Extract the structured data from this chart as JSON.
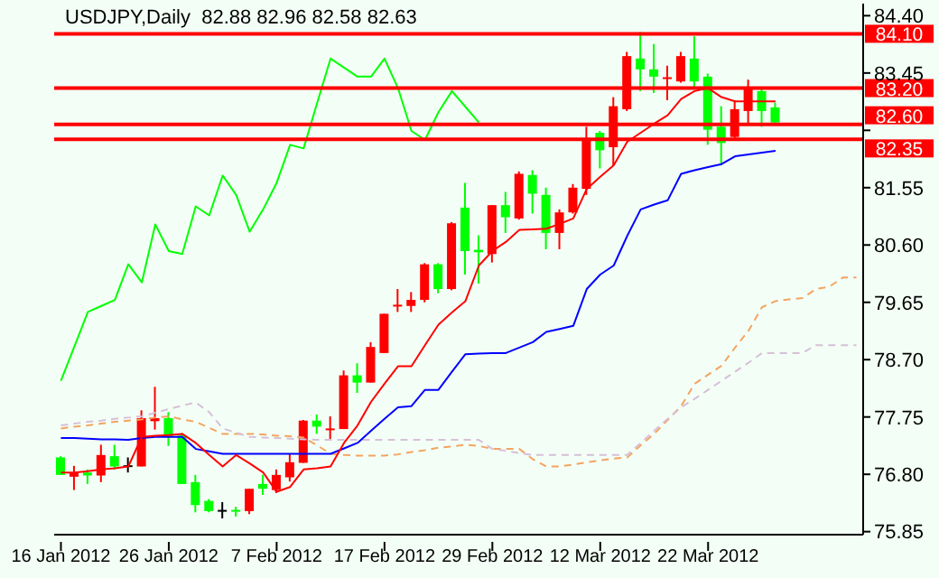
{
  "chart_data": {
    "type": "candlestick",
    "title": "USDJPY,Daily  82.88 82.96 82.58 82.63",
    "categories": [
      "16 Jan 2012",
      null,
      null,
      null,
      null,
      null,
      null,
      null,
      "26 Jan 2012",
      null,
      null,
      null,
      null,
      null,
      null,
      null,
      "7 Feb 2012",
      null,
      null,
      null,
      null,
      null,
      null,
      null,
      "17 Feb 2012",
      null,
      null,
      null,
      null,
      null,
      null,
      null,
      "29 Feb 2012",
      null,
      null,
      null,
      null,
      null,
      null,
      null,
      "12 Mar 2012",
      null,
      null,
      null,
      null,
      null,
      null,
      null,
      "22 Mar 2012",
      null,
      null,
      null,
      null,
      null,
      null,
      null,
      null,
      null,
      null,
      null
    ],
    "ylim": [
      75.8,
      84.6
    ],
    "yticks": [
      {
        "value": 84.4,
        "label": "84.40"
      },
      {
        "value": 83.45,
        "label": "83.45"
      },
      {
        "value": 82.5,
        "label": null
      },
      {
        "value": 81.55,
        "label": "81.55"
      },
      {
        "value": 80.6,
        "label": "80.60"
      },
      {
        "value": 79.65,
        "label": "79.65"
      },
      {
        "value": 78.7,
        "label": "78.70"
      },
      {
        "value": 77.75,
        "label": "77.75"
      },
      {
        "value": 76.8,
        "label": "76.80"
      },
      {
        "value": 75.85,
        "label": "75.85"
      }
    ],
    "marker": "none",
    "ref_lines": [
      {
        "axis": "y",
        "value": 84.1,
        "label": "84.10",
        "color": "#ff0000"
      },
      {
        "axis": "y",
        "value": 83.2,
        "label": "83.20",
        "color": "#ff0000"
      },
      {
        "axis": "y",
        "value": 82.6,
        "label": "82.60",
        "color": "#ff0000"
      },
      {
        "axis": "y",
        "value": 82.35,
        "label": "82.35",
        "color": "#ff0000"
      }
    ],
    "series": [
      {
        "type": "line",
        "color": "#f4a460",
        "line_style": "dashed",
        "values": [
          77.56,
          77.59,
          77.61,
          77.64,
          77.67,
          77.69,
          77.71,
          77.74,
          77.76,
          77.71,
          77.67,
          77.57,
          77.47,
          77.47,
          77.47,
          77.46,
          77.44,
          77.43,
          77.41,
          77.28,
          77.14,
          77.12,
          77.11,
          77.11,
          77.11,
          77.13,
          77.17,
          77.2,
          77.24,
          77.26,
          77.29,
          77.27,
          77.22,
          77.22,
          77.22,
          77.05,
          76.93,
          76.93,
          76.96,
          77.0,
          77.03,
          77.06,
          77.08,
          77.28,
          77.47,
          77.7,
          77.93,
          78.3,
          78.45,
          78.6,
          78.9,
          79.18,
          79.57,
          79.67,
          79.7,
          79.72,
          79.87,
          79.91,
          80.06,
          80.06
        ]
      },
      {
        "type": "line",
        "color": "#d8bfd8",
        "line_style": "dashed",
        "values": [
          77.61,
          77.64,
          77.67,
          77.69,
          77.72,
          77.74,
          77.76,
          77.82,
          77.88,
          77.94,
          77.99,
          77.83,
          77.56,
          77.49,
          77.42,
          77.41,
          77.4,
          77.39,
          77.38,
          77.37,
          77.37,
          77.37,
          77.37,
          77.37,
          77.37,
          77.37,
          77.37,
          77.37,
          77.37,
          77.37,
          77.37,
          77.37,
          77.22,
          77.19,
          77.15,
          77.12,
          77.12,
          77.12,
          77.12,
          77.12,
          77.12,
          77.12,
          77.12,
          77.32,
          77.52,
          77.72,
          77.91,
          78.05,
          78.2,
          78.35,
          78.5,
          78.65,
          78.81,
          78.81,
          78.81,
          78.81,
          78.94,
          78.94,
          78.94,
          78.94
        ]
      },
      {
        "type": "line",
        "color": "#00ff00",
        "values": [
          78.35,
          78.92,
          79.49,
          79.59,
          79.69,
          80.28,
          79.98,
          80.94,
          80.5,
          80.45,
          81.24,
          81.09,
          81.75,
          81.43,
          80.82,
          81.19,
          81.63,
          82.26,
          82.2,
          82.95,
          83.69,
          83.54,
          83.39,
          83.39,
          83.69,
          83.2,
          82.49,
          82.34,
          82.8,
          83.15,
          82.89,
          82.63,
          null,
          null,
          null,
          null,
          null,
          null,
          null,
          null,
          null,
          null,
          null,
          null,
          null,
          null,
          null,
          null,
          null,
          null,
          null,
          null,
          null,
          null,
          null,
          null,
          null,
          null,
          null,
          null
        ]
      },
      {
        "type": "line",
        "color": "#0000ff",
        "values": [
          77.4,
          77.4,
          77.39,
          77.38,
          77.38,
          77.37,
          77.4,
          77.42,
          77.42,
          77.42,
          77.22,
          77.18,
          77.14,
          77.14,
          77.14,
          77.14,
          77.14,
          77.14,
          77.14,
          77.14,
          77.14,
          77.23,
          77.32,
          77.52,
          77.72,
          77.91,
          77.93,
          78.2,
          78.2,
          78.5,
          78.79,
          78.8,
          78.81,
          78.81,
          78.9,
          78.99,
          79.16,
          79.21,
          79.26,
          79.87,
          80.11,
          80.26,
          80.75,
          81.19,
          81.27,
          81.34,
          81.78,
          81.84,
          81.89,
          81.94,
          82.07,
          82.1,
          82.13,
          82.16,
          null,
          null,
          null,
          null,
          null,
          null
        ]
      },
      {
        "type": "line",
        "color": "#ff0000",
        "values": [
          76.83,
          76.83,
          76.85,
          76.88,
          76.9,
          76.93,
          77.42,
          77.44,
          77.45,
          77.47,
          77.32,
          77.12,
          76.93,
          77.12,
          76.98,
          76.83,
          76.51,
          76.59,
          76.88,
          76.9,
          76.93,
          77.32,
          77.61,
          78.0,
          78.3,
          78.59,
          78.59,
          78.94,
          79.28,
          79.48,
          79.67,
          80.26,
          80.5,
          80.65,
          80.85,
          80.86,
          80.87,
          80.95,
          81.04,
          81.53,
          81.73,
          81.92,
          82.31,
          82.46,
          82.61,
          82.75,
          83.02,
          83.15,
          83.2,
          83.05,
          82.98,
          82.98,
          82.98,
          82.98,
          null,
          null,
          null,
          null,
          null,
          null
        ]
      },
      {
        "type": "candlestick",
        "colors": [
          "#00ff00",
          "#ff0000",
          "#00ff00",
          "#ff0000",
          "#00ff00",
          "#000000",
          "#ff0000",
          "#ff0000",
          "#00ff00",
          "#00ff00",
          "#00ff00",
          "#00ff00",
          "#000000",
          "#00ff00",
          "#ff0000",
          "#00ff00",
          "#ff0000",
          "#ff0000",
          "#ff0000",
          "#00ff00",
          "#ff0000",
          "#ff0000",
          "#00ff00",
          "#ff0000",
          "#ff0000",
          "#ff0000",
          "#ff0000",
          "#ff0000",
          "#00ff00",
          "#ff0000",
          "#00ff00",
          "#00ff00",
          "#ff0000",
          "#00ff00",
          "#ff0000",
          "#00ff00",
          "#00ff00",
          "#ff0000",
          "#ff0000",
          "#ff0000",
          "#00ff00",
          "#ff0000",
          "#ff0000",
          "#00ff00",
          "#00ff00",
          "#ff0000",
          "#ff0000",
          "#00ff00",
          "#00ff00",
          "#00ff00",
          "#ff0000",
          "#ff0000",
          "#00ff00",
          "#00ff00",
          null,
          null,
          null,
          null,
          null,
          null
        ],
        "ohlc": [
          [
            77.08,
            77.1,
            76.79,
            76.79
          ],
          [
            76.76,
            76.94,
            76.54,
            76.83
          ],
          [
            76.83,
            76.88,
            76.64,
            76.78
          ],
          [
            76.78,
            77.29,
            76.67,
            77.12
          ],
          [
            77.1,
            77.29,
            76.88,
            76.93
          ],
          [
            76.95,
            77.08,
            76.83,
            76.95
          ],
          [
            76.93,
            77.86,
            76.93,
            77.73
          ],
          [
            77.68,
            78.25,
            77.54,
            77.73
          ],
          [
            77.73,
            77.83,
            77.27,
            77.42
          ],
          [
            77.44,
            77.48,
            76.64,
            76.64
          ],
          [
            76.67,
            76.79,
            76.17,
            76.29
          ],
          [
            76.36,
            76.39,
            76.17,
            76.19
          ],
          [
            76.21,
            76.34,
            76.07,
            76.21
          ],
          [
            76.21,
            76.26,
            76.1,
            76.19
          ],
          [
            76.19,
            76.56,
            76.14,
            76.56
          ],
          [
            76.64,
            76.79,
            76.46,
            76.56
          ],
          [
            76.54,
            76.88,
            76.49,
            76.79
          ],
          [
            76.75,
            77.14,
            76.68,
            77.0
          ],
          [
            76.99,
            77.7,
            76.99,
            77.69
          ],
          [
            77.69,
            77.79,
            77.47,
            77.59
          ],
          [
            77.54,
            77.76,
            77.37,
            77.56
          ],
          [
            77.55,
            78.52,
            77.55,
            78.44
          ],
          [
            78.44,
            78.64,
            78.15,
            78.32
          ],
          [
            78.32,
            78.99,
            78.32,
            78.91
          ],
          [
            78.81,
            79.46,
            78.81,
            79.46
          ],
          [
            79.58,
            79.87,
            79.49,
            79.61
          ],
          [
            79.59,
            79.82,
            79.49,
            79.69
          ],
          [
            79.69,
            80.3,
            79.65,
            80.28
          ],
          [
            80.28,
            80.3,
            79.8,
            79.87
          ],
          [
            79.87,
            80.98,
            79.85,
            80.96
          ],
          [
            81.22,
            81.63,
            80.11,
            80.5
          ],
          [
            80.52,
            80.76,
            79.96,
            80.48
          ],
          [
            80.45,
            81.26,
            80.31,
            81.26
          ],
          [
            81.26,
            81.48,
            80.8,
            81.06
          ],
          [
            81.04,
            81.82,
            81.02,
            81.78
          ],
          [
            81.76,
            81.84,
            81.12,
            81.45
          ],
          [
            81.43,
            81.55,
            80.53,
            80.8
          ],
          [
            80.8,
            81.19,
            80.53,
            81.14
          ],
          [
            81.14,
            81.61,
            81.12,
            81.55
          ],
          [
            81.53,
            82.56,
            81.43,
            82.36
          ],
          [
            82.46,
            82.49,
            81.87,
            82.17
          ],
          [
            82.22,
            83.05,
            81.92,
            82.9
          ],
          [
            82.85,
            83.8,
            82.82,
            83.73
          ],
          [
            83.69,
            84.13,
            83.15,
            83.51
          ],
          [
            83.51,
            83.93,
            83.12,
            83.39
          ],
          [
            83.35,
            83.57,
            83.0,
            83.38
          ],
          [
            83.31,
            83.8,
            83.29,
            83.73
          ],
          [
            83.69,
            84.06,
            83.22,
            83.31
          ],
          [
            83.39,
            83.44,
            82.26,
            82.51
          ],
          [
            82.56,
            82.9,
            81.92,
            82.29
          ],
          [
            82.39,
            83.0,
            82.36,
            82.85
          ],
          [
            82.82,
            83.34,
            82.59,
            83.18
          ],
          [
            83.15,
            83.2,
            82.56,
            82.82
          ],
          [
            82.88,
            82.96,
            82.58,
            82.63
          ],
          null,
          null,
          null,
          null,
          null,
          null
        ]
      }
    ]
  }
}
